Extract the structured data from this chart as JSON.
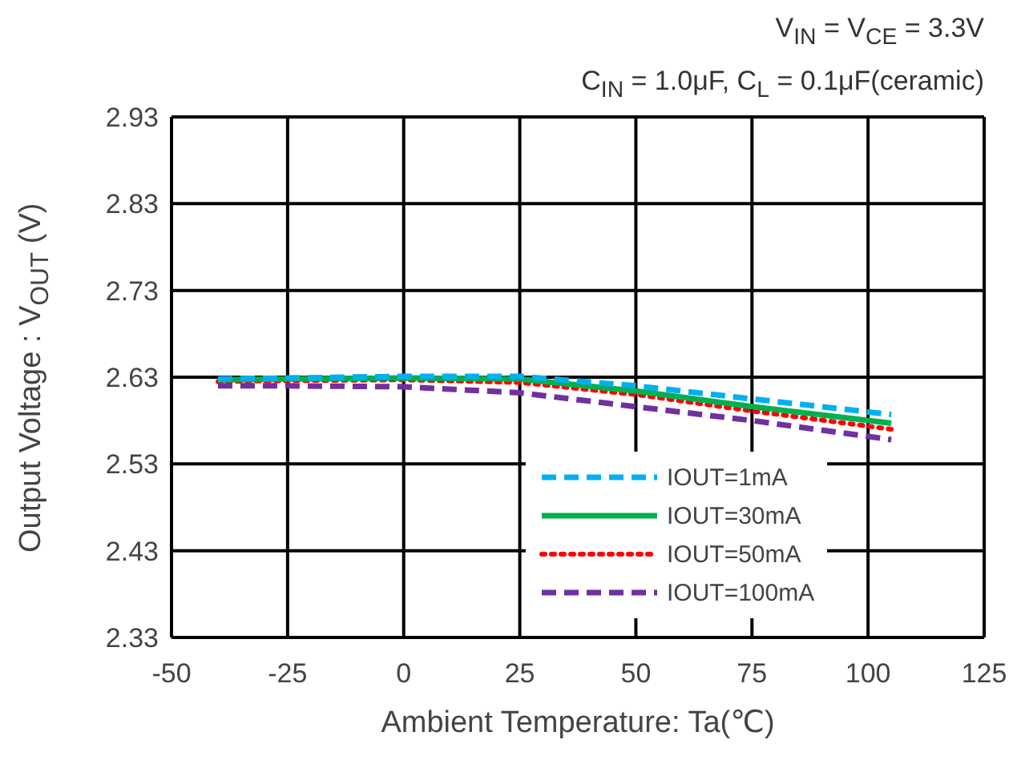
{
  "chart_data": {
    "type": "line",
    "xlabel": "Ambient Temperature: Ta(℃)",
    "ylabel": "Output Voltage : V$_{OUT}$ (V)",
    "annotations": [
      "V$_{IN}$ = V$_{CE}$ = 3.3V",
      "C$_{IN}$ = 1.0μF, C$_{L}$ = 0.1μF(ceramic)"
    ],
    "x": [
      -40,
      -25,
      0,
      25,
      50,
      75,
      105
    ],
    "series": [
      {
        "name": "IOUT=1mA",
        "color": "#00b0f0",
        "line_style": "dashed",
        "values": [
          2.628,
          2.629,
          2.631,
          2.631,
          2.62,
          2.605,
          2.587
        ]
      },
      {
        "name": "IOUT=30mA",
        "color": "#00b050",
        "line_style": "solid",
        "values": [
          2.627,
          2.628,
          2.629,
          2.628,
          2.614,
          2.596,
          2.577
        ]
      },
      {
        "name": "IOUT=50mA",
        "color": "#ff0000",
        "line_style": "dotted",
        "values": [
          2.625,
          2.626,
          2.627,
          2.624,
          2.61,
          2.591,
          2.57
        ]
      },
      {
        "name": "IOUT=100mA",
        "color": "#7030a0",
        "line_style": "dashed",
        "values": [
          2.62,
          2.62,
          2.619,
          2.612,
          2.596,
          2.58,
          2.558
        ]
      }
    ],
    "xlim": [
      -50,
      125
    ],
    "xticks": [
      -50,
      -25,
      0,
      25,
      50,
      75,
      100,
      125
    ],
    "ylim": [
      2.33,
      2.93
    ],
    "yticks": [
      2.33,
      2.43,
      2.53,
      2.63,
      2.73,
      2.83,
      2.93
    ],
    "grid": true,
    "legend": "bottom right",
    "marker": "none"
  }
}
